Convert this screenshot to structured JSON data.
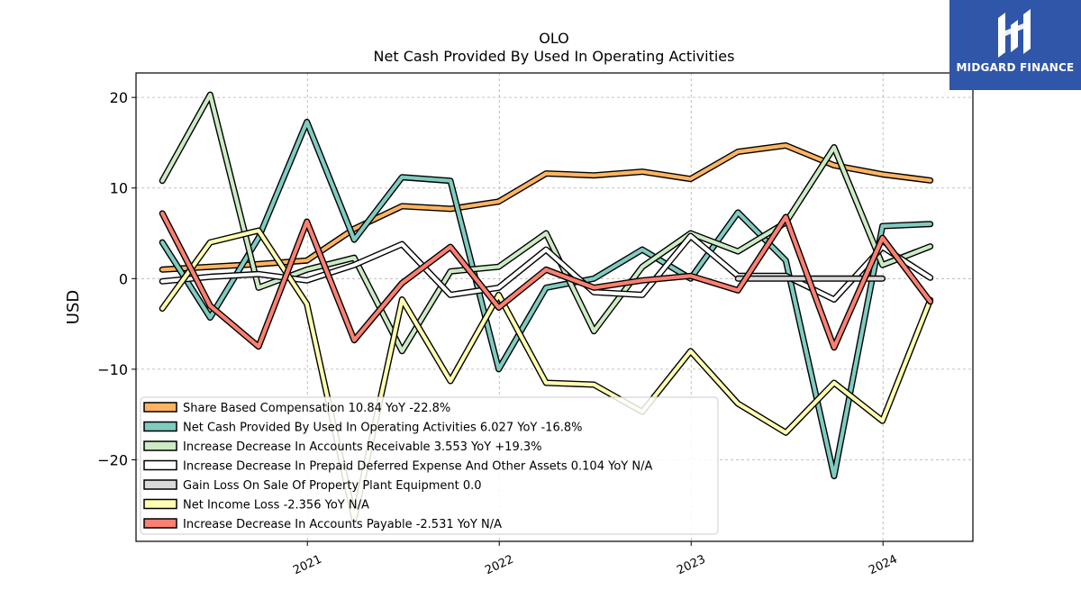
{
  "brand": {
    "name": "MIDGARD FINANCE",
    "bg": "#2f56a8"
  },
  "chart_data": {
    "type": "line",
    "title": "OLO",
    "subtitle": "Net Cash Provided By Used In Operating Activities",
    "xlabel": "",
    "ylabel": "USD",
    "ylim": [
      -29,
      22.7
    ],
    "yticks": [
      -20,
      -10,
      0,
      10,
      20
    ],
    "ytick_labels": [
      "−20",
      "−10",
      "0",
      "10",
      "20"
    ],
    "xlim": [
      "2020-02-10",
      "2024-06-20"
    ],
    "xticks": [
      "2021-01-01",
      "2022-01-01",
      "2023-01-01",
      "2024-01-01"
    ],
    "xtick_labels": [
      "2021",
      "2022",
      "2023",
      "2024"
    ],
    "grid": true,
    "legend_position": "lower-left",
    "x": [
      "2020-03-31",
      "2020-06-30",
      "2020-09-30",
      "2020-12-31",
      "2021-03-31",
      "2021-06-30",
      "2021-09-30",
      "2021-12-31",
      "2022-03-31",
      "2022-06-30",
      "2022-09-30",
      "2022-12-31",
      "2023-03-31",
      "2023-06-30",
      "2023-09-30",
      "2023-12-31",
      "2024-03-31"
    ],
    "series": [
      {
        "name": "Share Based Compensation",
        "legend": "Share Based Compensation  10.84 YoY -22.8%",
        "color": "#fdb462",
        "values": [
          1.0,
          1.3,
          1.6,
          2.0,
          5.5,
          8.0,
          7.7,
          8.5,
          11.6,
          11.4,
          11.8,
          11.0,
          14.0,
          14.7,
          12.5,
          11.5,
          10.84
        ]
      },
      {
        "name": "Net Cash Provided By Used In Operating Activities",
        "legend": "Net Cash Provided By Used In Operating Activities  6.027 YoY -16.8%",
        "color": "#80cbc0",
        "values": [
          4.0,
          -4.3,
          4.5,
          17.3,
          4.3,
          11.2,
          10.8,
          -10.0,
          -1.0,
          0.0,
          3.2,
          0.0,
          7.3,
          2.0,
          -21.8,
          5.8,
          6.027
        ]
      },
      {
        "name": "Increase Decrease In Accounts Receivable",
        "legend": "Increase Decrease In Accounts Receivable  3.553 YoY +19.3%",
        "color": "#ccebc5",
        "values": [
          10.8,
          20.3,
          -1.0,
          1.0,
          2.3,
          -8.0,
          0.8,
          1.3,
          5.0,
          -5.8,
          1.3,
          5.0,
          3.0,
          6.2,
          14.5,
          1.5,
          3.553
        ]
      },
      {
        "name": "Increase Decrease In Prepaid Deferred Expense And Other Assets",
        "legend": "Increase Decrease In Prepaid Deferred Expense And Other Assets  0.104 YoY N/A",
        "color": "#ffffff",
        "values": [
          -0.3,
          0.2,
          0.5,
          -0.2,
          1.5,
          3.8,
          -1.8,
          -1.0,
          3.2,
          -1.5,
          -1.8,
          4.7,
          0.3,
          0.3,
          -2.3,
          3.5,
          0.104
        ]
      },
      {
        "name": "Gain Loss On Sale Of Property Plant Equipment",
        "legend": "Gain Loss On Sale Of Property Plant Equipment  0.0",
        "color": "#d9d9d9",
        "values": [
          null,
          null,
          null,
          null,
          null,
          null,
          null,
          null,
          null,
          null,
          null,
          null,
          0.0,
          0.0,
          0.0,
          0.0,
          null
        ]
      },
      {
        "name": "Net Income Loss",
        "legend": "Net Income Loss  -2.356 YoY N/A",
        "color": "#ffffb3",
        "values": [
          -3.3,
          4.0,
          5.3,
          -2.8,
          -26.5,
          -2.3,
          -11.3,
          -1.8,
          -11.5,
          -11.7,
          -14.7,
          -8.0,
          -13.8,
          -17.0,
          -11.5,
          -15.7,
          -2.356
        ]
      },
      {
        "name": "Increase Decrease In Accounts Payable",
        "legend": "Increase Decrease In Accounts Payable  -2.531 YoY N/A",
        "color": "#fb8072",
        "values": [
          7.2,
          -3.0,
          -7.5,
          6.3,
          -6.8,
          -0.5,
          3.5,
          -3.2,
          1.0,
          -1.0,
          -0.2,
          0.3,
          -1.3,
          6.8,
          -7.6,
          4.5,
          -2.531
        ]
      }
    ]
  }
}
